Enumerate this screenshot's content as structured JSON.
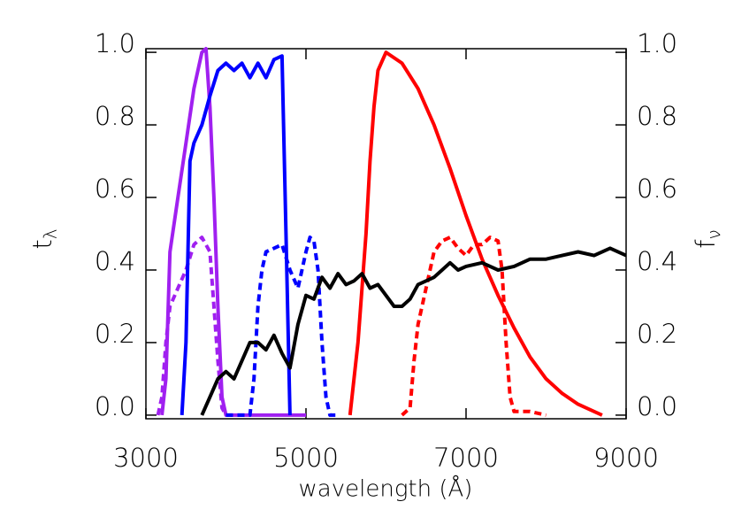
{
  "chart_data": {
    "type": "line",
    "xlabel": "wavelength (Å)",
    "ylabel": [
      "t",
      "λ"
    ],
    "y2label": [
      "f",
      "ν"
    ],
    "xlim": [
      3000,
      9000
    ],
    "xticks": [
      3000,
      5000,
      7000,
      9000
    ],
    "ylim": [
      -0.01,
      1.01
    ],
    "yticks": [
      {
        "value": 0,
        "label": "0.0"
      },
      {
        "value": 0.2,
        "label": "0.2"
      },
      {
        "value": 0.4,
        "label": "0.4"
      },
      {
        "value": 0.6,
        "label": "0.6"
      },
      {
        "value": 0.8,
        "label": "0.8"
      },
      {
        "value": 1,
        "label": "1.0"
      }
    ],
    "y2lim": [
      -0.01,
      1.01
    ],
    "y2ticks": [
      {
        "value": 0,
        "label": "0.0"
      },
      {
        "value": 0.2,
        "label": "0.2"
      },
      {
        "value": 0.4,
        "label": "0.4"
      },
      {
        "value": 0.6,
        "label": "0.6"
      },
      {
        "value": 0.8,
        "label": "0.8"
      },
      {
        "value": 1,
        "label": "1.0"
      }
    ],
    "series": [
      {
        "color": "#a020f0",
        "dashed": false,
        "x": [
          3200,
          3250,
          3300,
          3400,
          3500,
          3600,
          3700,
          3750,
          3800,
          3850,
          3900,
          3950,
          4000,
          4500,
          5000
        ],
        "values": [
          0,
          0.1,
          0.45,
          0.6,
          0.75,
          0.9,
          1.0,
          1.01,
          0.85,
          0.6,
          0.3,
          0.05,
          0,
          0,
          0
        ]
      },
      {
        "color": "#a020f0",
        "dashed": true,
        "x": [
          3150,
          3200,
          3250,
          3300,
          3400,
          3500,
          3600,
          3700,
          3800,
          3850,
          3900,
          3950,
          4000
        ],
        "values": [
          0,
          0.05,
          0.2,
          0.3,
          0.35,
          0.4,
          0.47,
          0.49,
          0.45,
          0.3,
          0.15,
          0.02,
          0
        ]
      },
      {
        "color": "#0000ff",
        "dashed": false,
        "x": [
          3450,
          3500,
          3550,
          3600,
          3700,
          3800,
          3900,
          4000,
          4100,
          4200,
          4300,
          4400,
          4500,
          4600,
          4700,
          4750,
          4800
        ],
        "values": [
          0,
          0.2,
          0.7,
          0.75,
          0.8,
          0.88,
          0.95,
          0.97,
          0.95,
          0.97,
          0.93,
          0.97,
          0.93,
          0.98,
          0.99,
          0.5,
          0
        ]
      },
      {
        "color": "#0000ff",
        "dashed": true,
        "x": [
          4000,
          4300,
          4350,
          4400,
          4450,
          4500,
          4600,
          4700,
          4800,
          4900,
          5000,
          5050,
          5100,
          5150,
          5200,
          5250,
          5300,
          5400
        ],
        "values": [
          0,
          0,
          0.1,
          0.3,
          0.4,
          0.45,
          0.46,
          0.47,
          0.4,
          0.35,
          0.45,
          0.49,
          0.48,
          0.4,
          0.2,
          0.05,
          0,
          0
        ]
      },
      {
        "color": "#ff0000",
        "dashed": false,
        "x": [
          5550,
          5650,
          5750,
          5800,
          5850,
          5900,
          6000,
          6200,
          6400,
          6600,
          6800,
          7000,
          7200,
          7400,
          7600,
          7800,
          8000,
          8200,
          8400,
          8600,
          8700
        ],
        "values": [
          0,
          0.2,
          0.5,
          0.7,
          0.85,
          0.95,
          1.0,
          0.97,
          0.9,
          0.8,
          0.68,
          0.55,
          0.43,
          0.33,
          0.24,
          0.16,
          0.1,
          0.06,
          0.03,
          0.01,
          0
        ]
      },
      {
        "color": "#ff0000",
        "dashed": true,
        "x": [
          6200,
          6300,
          6350,
          6400,
          6500,
          6600,
          6700,
          6800,
          6900,
          7000,
          7100,
          7200,
          7300,
          7400,
          7450,
          7500,
          7550,
          7600,
          7800,
          8000
        ],
        "values": [
          0,
          0.02,
          0.15,
          0.25,
          0.35,
          0.45,
          0.48,
          0.49,
          0.46,
          0.44,
          0.47,
          0.47,
          0.49,
          0.48,
          0.4,
          0.2,
          0.05,
          0.01,
          0.01,
          0
        ]
      },
      {
        "color": "#000000",
        "dashed": false,
        "axis": "y2",
        "x": [
          3700,
          3800,
          3900,
          4000,
          4100,
          4200,
          4300,
          4400,
          4500,
          4600,
          4700,
          4800,
          4900,
          5000,
          5100,
          5200,
          5300,
          5400,
          5500,
          5600,
          5700,
          5800,
          5900,
          6000,
          6100,
          6200,
          6300,
          6400,
          6500,
          6600,
          6700,
          6800,
          6900,
          7000,
          7200,
          7400,
          7600,
          7800,
          8000,
          8200,
          8400,
          8600,
          8800,
          9000
        ],
        "values": [
          0,
          0.05,
          0.1,
          0.12,
          0.1,
          0.15,
          0.2,
          0.2,
          0.18,
          0.22,
          0.17,
          0.13,
          0.25,
          0.33,
          0.32,
          0.38,
          0.35,
          0.39,
          0.36,
          0.37,
          0.39,
          0.35,
          0.36,
          0.33,
          0.3,
          0.3,
          0.32,
          0.36,
          0.37,
          0.38,
          0.4,
          0.42,
          0.4,
          0.41,
          0.42,
          0.4,
          0.41,
          0.43,
          0.43,
          0.44,
          0.45,
          0.44,
          0.46,
          0.44
        ]
      }
    ]
  }
}
